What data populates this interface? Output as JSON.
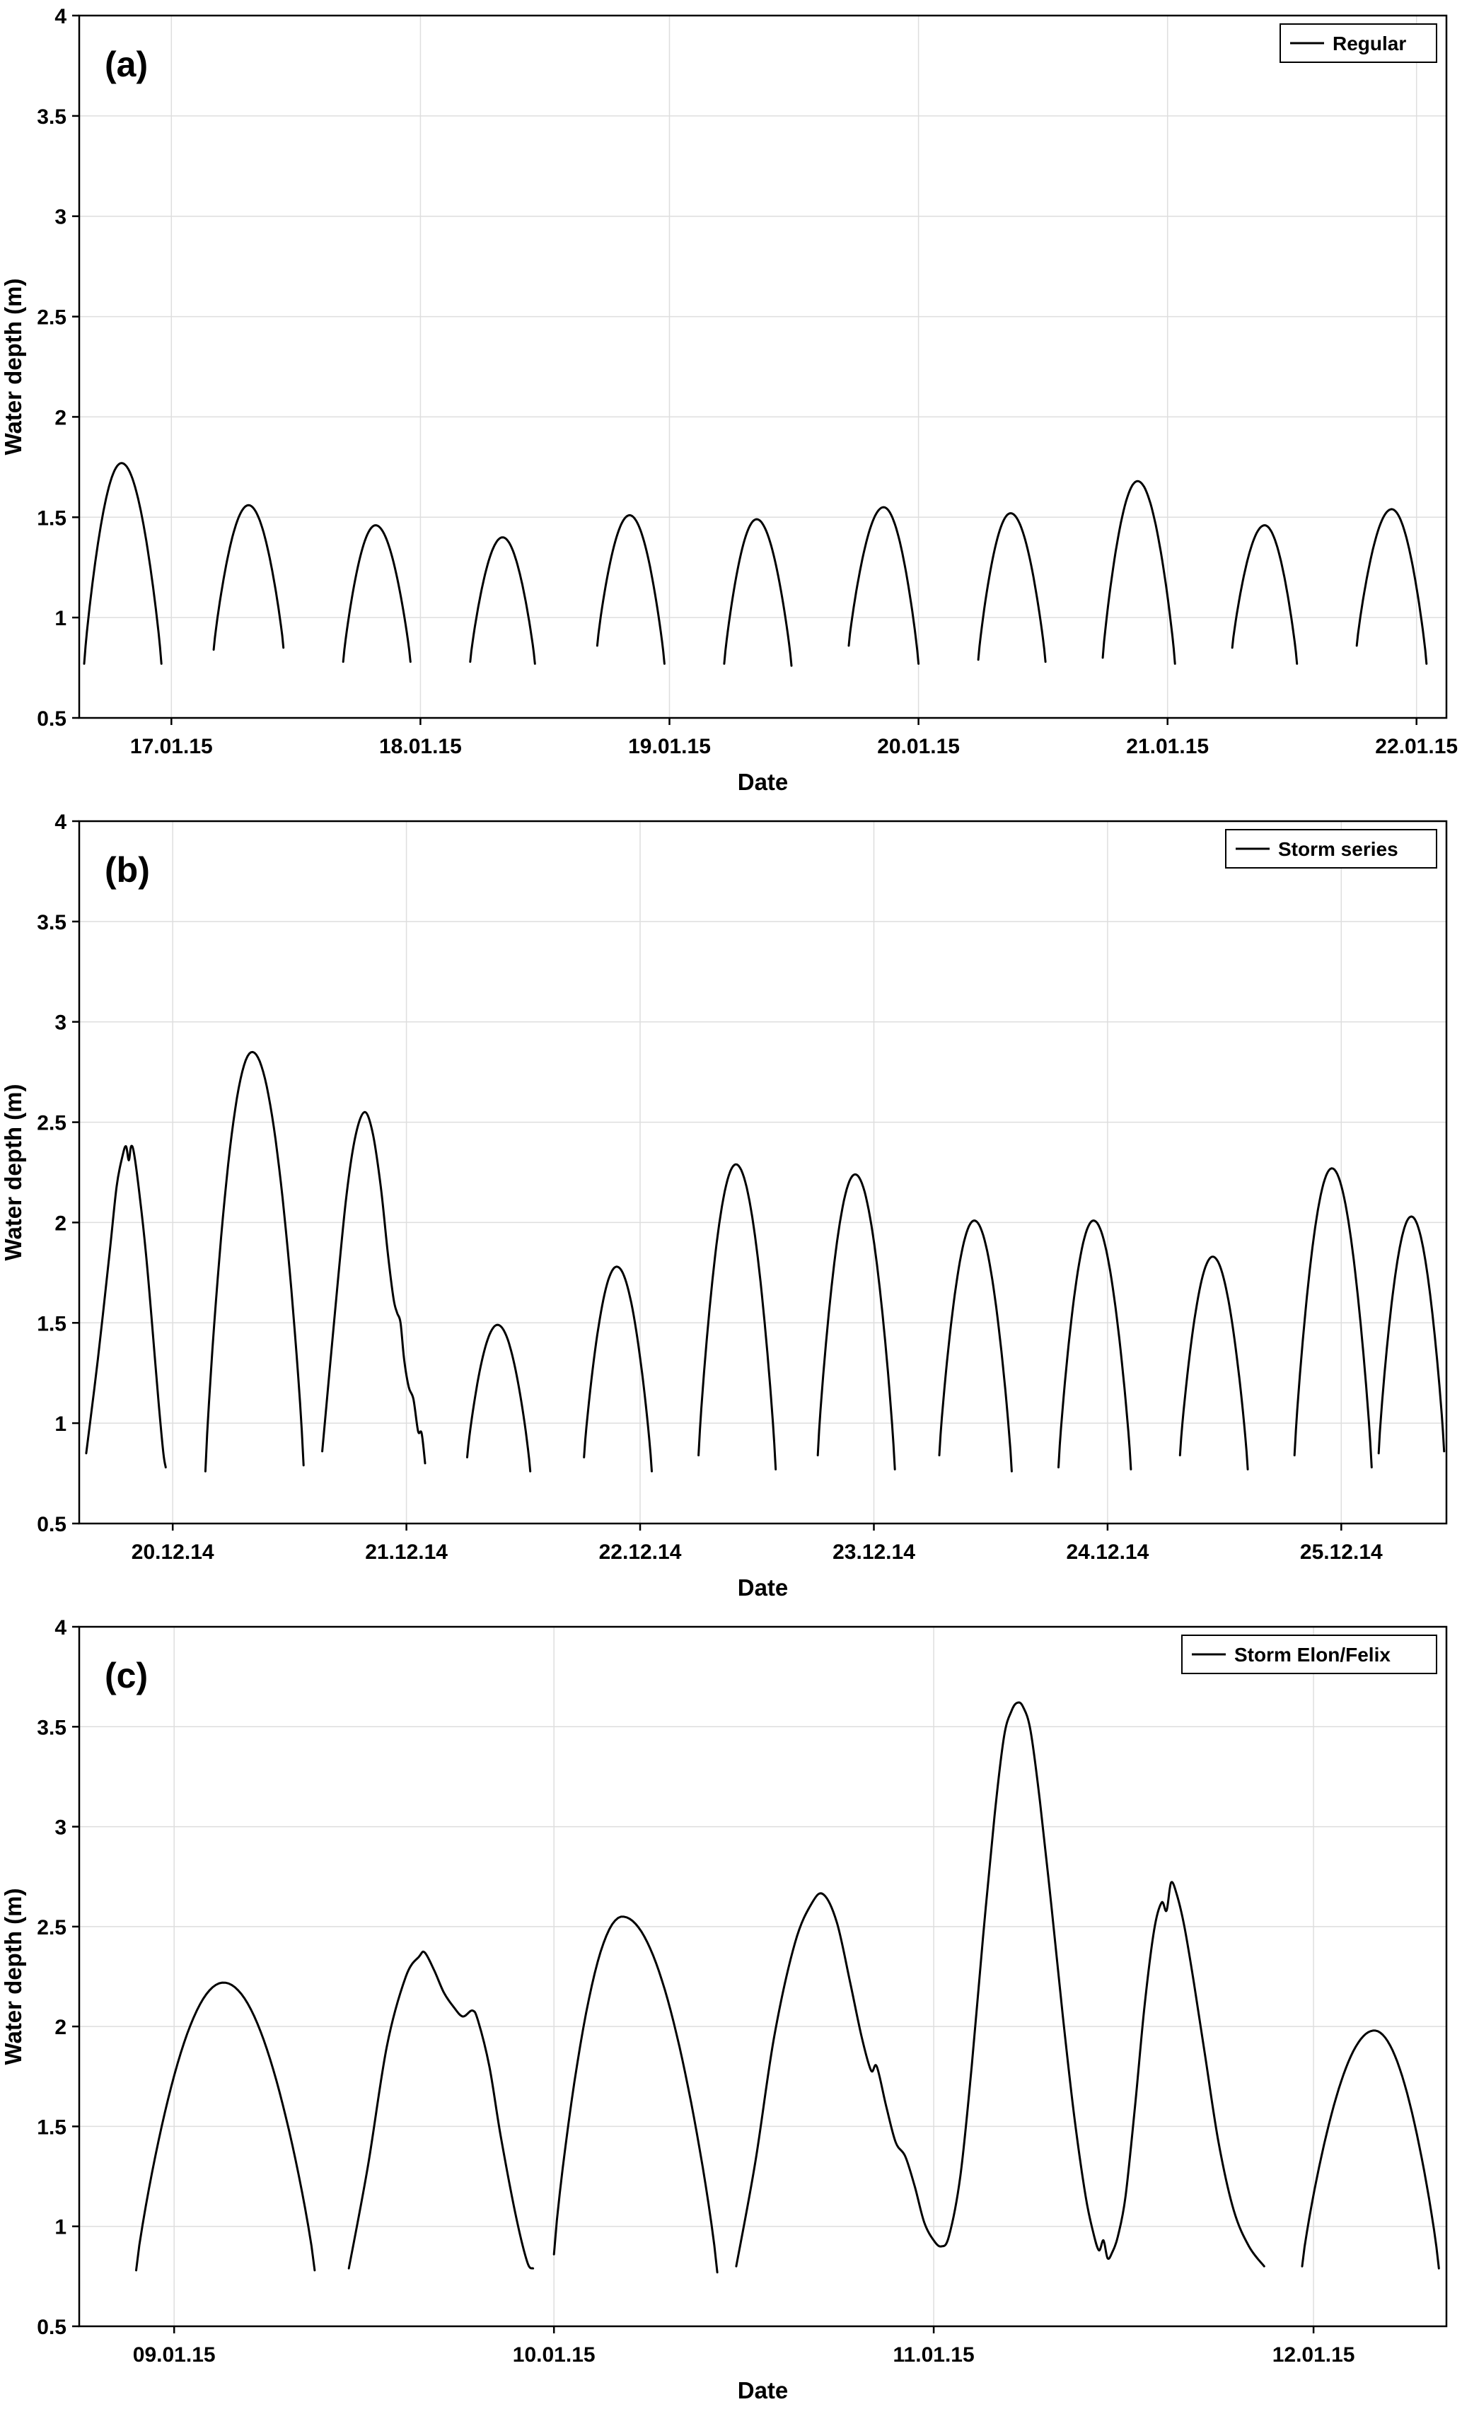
{
  "figure": {
    "background": "#ffffff",
    "line_color": "#000000",
    "grid_color": "#dedede",
    "axis_color": "#000000"
  },
  "chart_data": [
    {
      "id": "a",
      "type": "line",
      "panel_label": "(a)",
      "legend": {
        "label": "Regular",
        "position": "top-right"
      },
      "xlabel": "Date",
      "ylabel": "Water depth (m)",
      "xlim": [
        16.63,
        22.12
      ],
      "ylim": [
        0.5,
        4
      ],
      "grid": true,
      "yticks": [
        {
          "v": 0.5,
          "label": "0.5"
        },
        {
          "v": 1,
          "label": "1"
        },
        {
          "v": 1.5,
          "label": "1.5"
        },
        {
          "v": 2,
          "label": "2"
        },
        {
          "v": 2.5,
          "label": "2.5"
        },
        {
          "v": 3,
          "label": "3"
        },
        {
          "v": 3.5,
          "label": "3.5"
        },
        {
          "v": 4,
          "label": "4"
        }
      ],
      "xticks": [
        {
          "v": 17,
          "label": "17.01.15"
        },
        {
          "v": 18,
          "label": "18.01.15"
        },
        {
          "v": 19,
          "label": "19.01.15"
        },
        {
          "v": 20,
          "label": "20.01.15"
        },
        {
          "v": 21,
          "label": "21.01.15"
        },
        {
          "v": 22,
          "label": "22.01.15"
        }
      ],
      "segments": [
        {
          "kind": "pulse",
          "t0": 16.65,
          "tp": 16.8,
          "t1": 16.96,
          "peak": 1.77,
          "b0": 0.77,
          "b1": 0.77
        },
        {
          "kind": "pulse",
          "t0": 17.17,
          "tp": 17.31,
          "t1": 17.45,
          "peak": 1.56,
          "b0": 0.84,
          "b1": 0.85
        },
        {
          "kind": "pulse",
          "t0": 17.69,
          "tp": 17.82,
          "t1": 17.96,
          "peak": 1.46,
          "b0": 0.78,
          "b1": 0.78
        },
        {
          "kind": "pulse",
          "t0": 18.2,
          "tp": 18.33,
          "t1": 18.46,
          "peak": 1.4,
          "b0": 0.78,
          "b1": 0.77
        },
        {
          "kind": "pulse",
          "t0": 18.71,
          "tp": 18.84,
          "t1": 18.98,
          "peak": 1.51,
          "b0": 0.86,
          "b1": 0.77
        },
        {
          "kind": "pulse",
          "t0": 19.22,
          "tp": 19.35,
          "t1": 19.49,
          "peak": 1.49,
          "b0": 0.77,
          "b1": 0.76
        },
        {
          "kind": "pulse",
          "t0": 19.72,
          "tp": 19.86,
          "t1": 20.0,
          "peak": 1.55,
          "b0": 0.86,
          "b1": 0.77
        },
        {
          "kind": "pulse",
          "t0": 20.24,
          "tp": 20.37,
          "t1": 20.51,
          "peak": 1.52,
          "b0": 0.79,
          "b1": 0.78
        },
        {
          "kind": "pulse",
          "t0": 20.74,
          "tp": 20.88,
          "t1": 21.03,
          "peak": 1.68,
          "b0": 0.8,
          "b1": 0.77
        },
        {
          "kind": "pulse",
          "t0": 21.26,
          "tp": 21.39,
          "t1": 21.52,
          "peak": 1.46,
          "b0": 0.85,
          "b1": 0.77
        },
        {
          "kind": "pulse",
          "t0": 21.76,
          "tp": 21.9,
          "t1": 22.04,
          "peak": 1.54,
          "b0": 0.86,
          "b1": 0.77
        }
      ]
    },
    {
      "id": "b",
      "type": "line",
      "panel_label": "(b)",
      "legend": {
        "label": "Storm series",
        "position": "top-right"
      },
      "xlabel": "Date",
      "ylabel": "Water depth (m)",
      "xlim": [
        19.6,
        25.45
      ],
      "ylim": [
        0.5,
        4
      ],
      "grid": true,
      "yticks": [
        {
          "v": 0.5,
          "label": "0.5"
        },
        {
          "v": 1,
          "label": "1"
        },
        {
          "v": 1.5,
          "label": "1.5"
        },
        {
          "v": 2,
          "label": "2"
        },
        {
          "v": 2.5,
          "label": "2.5"
        },
        {
          "v": 3,
          "label": "3"
        },
        {
          "v": 3.5,
          "label": "3.5"
        },
        {
          "v": 4,
          "label": "4"
        }
      ],
      "xticks": [
        {
          "v": 20,
          "label": "20.12.14"
        },
        {
          "v": 21,
          "label": "21.12.14"
        },
        {
          "v": 22,
          "label": "22.12.14"
        },
        {
          "v": 23,
          "label": "23.12.14"
        },
        {
          "v": 24,
          "label": "24.12.14"
        },
        {
          "v": 25,
          "label": "25.12.14"
        }
      ],
      "segments": [
        {
          "kind": "points",
          "pts": [
            [
              19.63,
              0.85
            ],
            [
              19.68,
              1.32
            ],
            [
              19.73,
              1.85
            ],
            [
              19.76,
              2.18
            ],
            [
              19.785,
              2.33
            ],
            [
              19.8,
              2.38
            ],
            [
              19.812,
              2.31
            ],
            [
              19.822,
              2.38
            ],
            [
              19.835,
              2.34
            ],
            [
              19.86,
              2.12
            ],
            [
              19.885,
              1.85
            ],
            [
              19.91,
              1.52
            ],
            [
              19.94,
              1.1
            ],
            [
              19.96,
              0.85
            ],
            [
              19.97,
              0.78
            ]
          ]
        },
        {
          "kind": "pulse",
          "t0": 20.14,
          "tp": 20.34,
          "t1": 20.56,
          "peak": 2.85,
          "b0": 0.76,
          "b1": 0.79
        },
        {
          "kind": "points",
          "pts": [
            [
              20.64,
              0.86
            ],
            [
              20.69,
              1.5
            ],
            [
              20.74,
              2.1
            ],
            [
              20.78,
              2.42
            ],
            [
              20.82,
              2.55
            ],
            [
              20.855,
              2.45
            ],
            [
              20.89,
              2.18
            ],
            [
              20.92,
              1.85
            ],
            [
              20.945,
              1.62
            ],
            [
              20.96,
              1.55
            ],
            [
              20.975,
              1.5
            ],
            [
              20.99,
              1.32
            ],
            [
              21.01,
              1.18
            ],
            [
              21.03,
              1.12
            ],
            [
              21.05,
              0.96
            ],
            [
              21.065,
              0.95
            ],
            [
              21.08,
              0.8
            ]
          ]
        },
        {
          "kind": "pulse",
          "t0": 21.26,
          "tp": 21.39,
          "t1": 21.53,
          "peak": 1.49,
          "b0": 0.83,
          "b1": 0.76
        },
        {
          "kind": "pulse",
          "t0": 21.76,
          "tp": 21.9,
          "t1": 22.05,
          "peak": 1.78,
          "b0": 0.83,
          "b1": 0.76
        },
        {
          "kind": "pulse",
          "t0": 22.25,
          "tp": 22.41,
          "t1": 22.58,
          "peak": 2.29,
          "b0": 0.84,
          "b1": 0.77
        },
        {
          "kind": "pulse",
          "t0": 22.76,
          "tp": 22.92,
          "t1": 23.09,
          "peak": 2.24,
          "b0": 0.84,
          "b1": 0.77
        },
        {
          "kind": "pulse",
          "t0": 23.28,
          "tp": 23.43,
          "t1": 23.59,
          "peak": 2.01,
          "b0": 0.84,
          "b1": 0.76
        },
        {
          "kind": "pulse",
          "t0": 23.79,
          "tp": 23.94,
          "t1": 24.1,
          "peak": 2.01,
          "b0": 0.78,
          "b1": 0.77
        },
        {
          "kind": "pulse",
          "t0": 24.31,
          "tp": 24.45,
          "t1": 24.6,
          "peak": 1.83,
          "b0": 0.84,
          "b1": 0.77
        },
        {
          "kind": "pulse",
          "t0": 24.8,
          "tp": 24.96,
          "t1": 25.13,
          "peak": 2.27,
          "b0": 0.84,
          "b1": 0.78
        },
        {
          "kind": "pulse",
          "t0": 25.16,
          "tp": 25.3,
          "t1": 25.44,
          "peak": 2.03,
          "b0": 0.85,
          "b1": 0.86
        }
      ]
    },
    {
      "id": "c",
      "type": "line",
      "panel_label": "(c)",
      "legend": {
        "label": "Storm Elon/Felix",
        "position": "top-right"
      },
      "xlabel": "Date",
      "ylabel": "Water depth (m)",
      "xlim": [
        8.75,
        12.35
      ],
      "ylim": [
        0.5,
        4
      ],
      "grid": true,
      "yticks": [
        {
          "v": 0.5,
          "label": "0.5"
        },
        {
          "v": 1,
          "label": "1"
        },
        {
          "v": 1.5,
          "label": "1.5"
        },
        {
          "v": 2,
          "label": "2"
        },
        {
          "v": 2.5,
          "label": "2.5"
        },
        {
          "v": 3,
          "label": "3"
        },
        {
          "v": 3.5,
          "label": "3.5"
        },
        {
          "v": 4,
          "label": "4"
        }
      ],
      "xticks": [
        {
          "v": 9,
          "label": "09.01.15"
        },
        {
          "v": 10,
          "label": "10.01.15"
        },
        {
          "v": 11,
          "label": "11.01.15"
        },
        {
          "v": 12,
          "label": "12.01.15"
        }
      ],
      "segments": [
        {
          "kind": "pulse",
          "t0": 8.9,
          "tp": 9.13,
          "t1": 9.37,
          "peak": 2.22,
          "b0": 0.78,
          "b1": 0.78
        },
        {
          "kind": "points",
          "pts": [
            [
              9.46,
              0.79
            ],
            [
              9.51,
              1.3
            ],
            [
              9.56,
              1.9
            ],
            [
              9.61,
              2.25
            ],
            [
              9.645,
              2.35
            ],
            [
              9.66,
              2.37
            ],
            [
              9.685,
              2.28
            ],
            [
              9.71,
              2.17
            ],
            [
              9.735,
              2.1
            ],
            [
              9.76,
              2.05
            ],
            [
              9.785,
              2.08
            ],
            [
              9.8,
              2.03
            ],
            [
              9.83,
              1.8
            ],
            [
              9.86,
              1.45
            ],
            [
              9.9,
              1.05
            ],
            [
              9.93,
              0.82
            ],
            [
              9.945,
              0.79
            ]
          ]
        },
        {
          "kind": "pulse",
          "t0": 10.0,
          "tp": 10.18,
          "t1": 10.43,
          "peak": 2.55,
          "b0": 0.86,
          "b1": 0.77
        },
        {
          "kind": "points",
          "pts": [
            [
              10.48,
              0.8
            ],
            [
              10.53,
              1.32
            ],
            [
              10.58,
              1.95
            ],
            [
              10.635,
              2.42
            ],
            [
              10.68,
              2.62
            ],
            [
              10.71,
              2.66
            ],
            [
              10.745,
              2.52
            ],
            [
              10.78,
              2.22
            ],
            [
              10.81,
              1.95
            ],
            [
              10.835,
              1.78
            ],
            [
              10.85,
              1.8
            ],
            [
              10.875,
              1.6
            ],
            [
              10.9,
              1.42
            ],
            [
              10.925,
              1.35
            ],
            [
              10.95,
              1.2
            ],
            [
              10.975,
              1.02
            ],
            [
              11.0,
              0.93
            ],
            [
              11.02,
              0.9
            ],
            [
              11.04,
              0.95
            ],
            [
              11.07,
              1.25
            ],
            [
              11.1,
              1.8
            ],
            [
              11.13,
              2.45
            ],
            [
              11.16,
              3.05
            ],
            [
              11.185,
              3.45
            ],
            [
              11.205,
              3.58
            ],
            [
              11.22,
              3.62
            ],
            [
              11.235,
              3.6
            ],
            [
              11.255,
              3.48
            ],
            [
              11.28,
              3.12
            ],
            [
              11.31,
              2.6
            ],
            [
              11.34,
              2.05
            ],
            [
              11.37,
              1.55
            ],
            [
              11.4,
              1.15
            ],
            [
              11.42,
              0.97
            ],
            [
              11.435,
              0.88
            ],
            [
              11.447,
              0.93
            ],
            [
              11.458,
              0.84
            ],
            [
              11.47,
              0.87
            ],
            [
              11.485,
              0.95
            ],
            [
              11.505,
              1.15
            ],
            [
              11.53,
              1.6
            ],
            [
              11.555,
              2.1
            ],
            [
              11.58,
              2.48
            ],
            [
              11.6,
              2.62
            ],
            [
              11.613,
              2.58
            ],
            [
              11.625,
              2.72
            ],
            [
              11.64,
              2.66
            ],
            [
              11.66,
              2.5
            ],
            [
              11.685,
              2.22
            ],
            [
              11.715,
              1.85
            ],
            [
              11.75,
              1.42
            ],
            [
              11.79,
              1.08
            ],
            [
              11.83,
              0.9
            ],
            [
              11.87,
              0.8
            ]
          ]
        },
        {
          "kind": "pulse",
          "t0": 11.97,
          "tp": 12.16,
          "t1": 12.33,
          "peak": 1.98,
          "b0": 0.8,
          "b1": 0.79
        }
      ]
    }
  ]
}
